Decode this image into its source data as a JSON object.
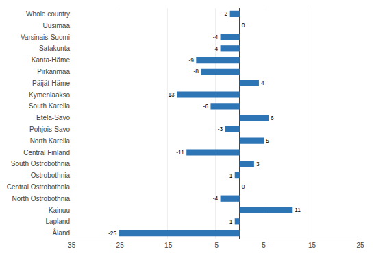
{
  "chart_data": {
    "type": "bar",
    "orientation": "horizontal",
    "categories": [
      "Whole country",
      "Uusimaa",
      "Varsinais-Suomi",
      "Satakunta",
      "Kanta-Häme",
      "Pirkanmaa",
      "Päijät-Häme",
      "Kymenlaakso",
      "South Karelia",
      "Etelä-Savo",
      "Pohjois-Savo",
      "North Karelia",
      "Central Finland",
      "South Ostrobothnia",
      "Ostrobothnia",
      "Central Ostrobothnia",
      "North Ostrobothnia",
      "Kainuu",
      "Lapland",
      "Åland"
    ],
    "values": [
      -2,
      0,
      -4,
      -4,
      -9,
      -8,
      4,
      -13,
      -6,
      6,
      -3,
      5,
      -11,
      3,
      -1,
      0,
      -4,
      11,
      -1,
      -25
    ],
    "color": "#2E75B6",
    "xlim": [
      -35,
      25
    ],
    "xticks": [
      -35,
      -25,
      -15,
      -5,
      5,
      15,
      25
    ],
    "grid": true,
    "data_labels": true
  }
}
